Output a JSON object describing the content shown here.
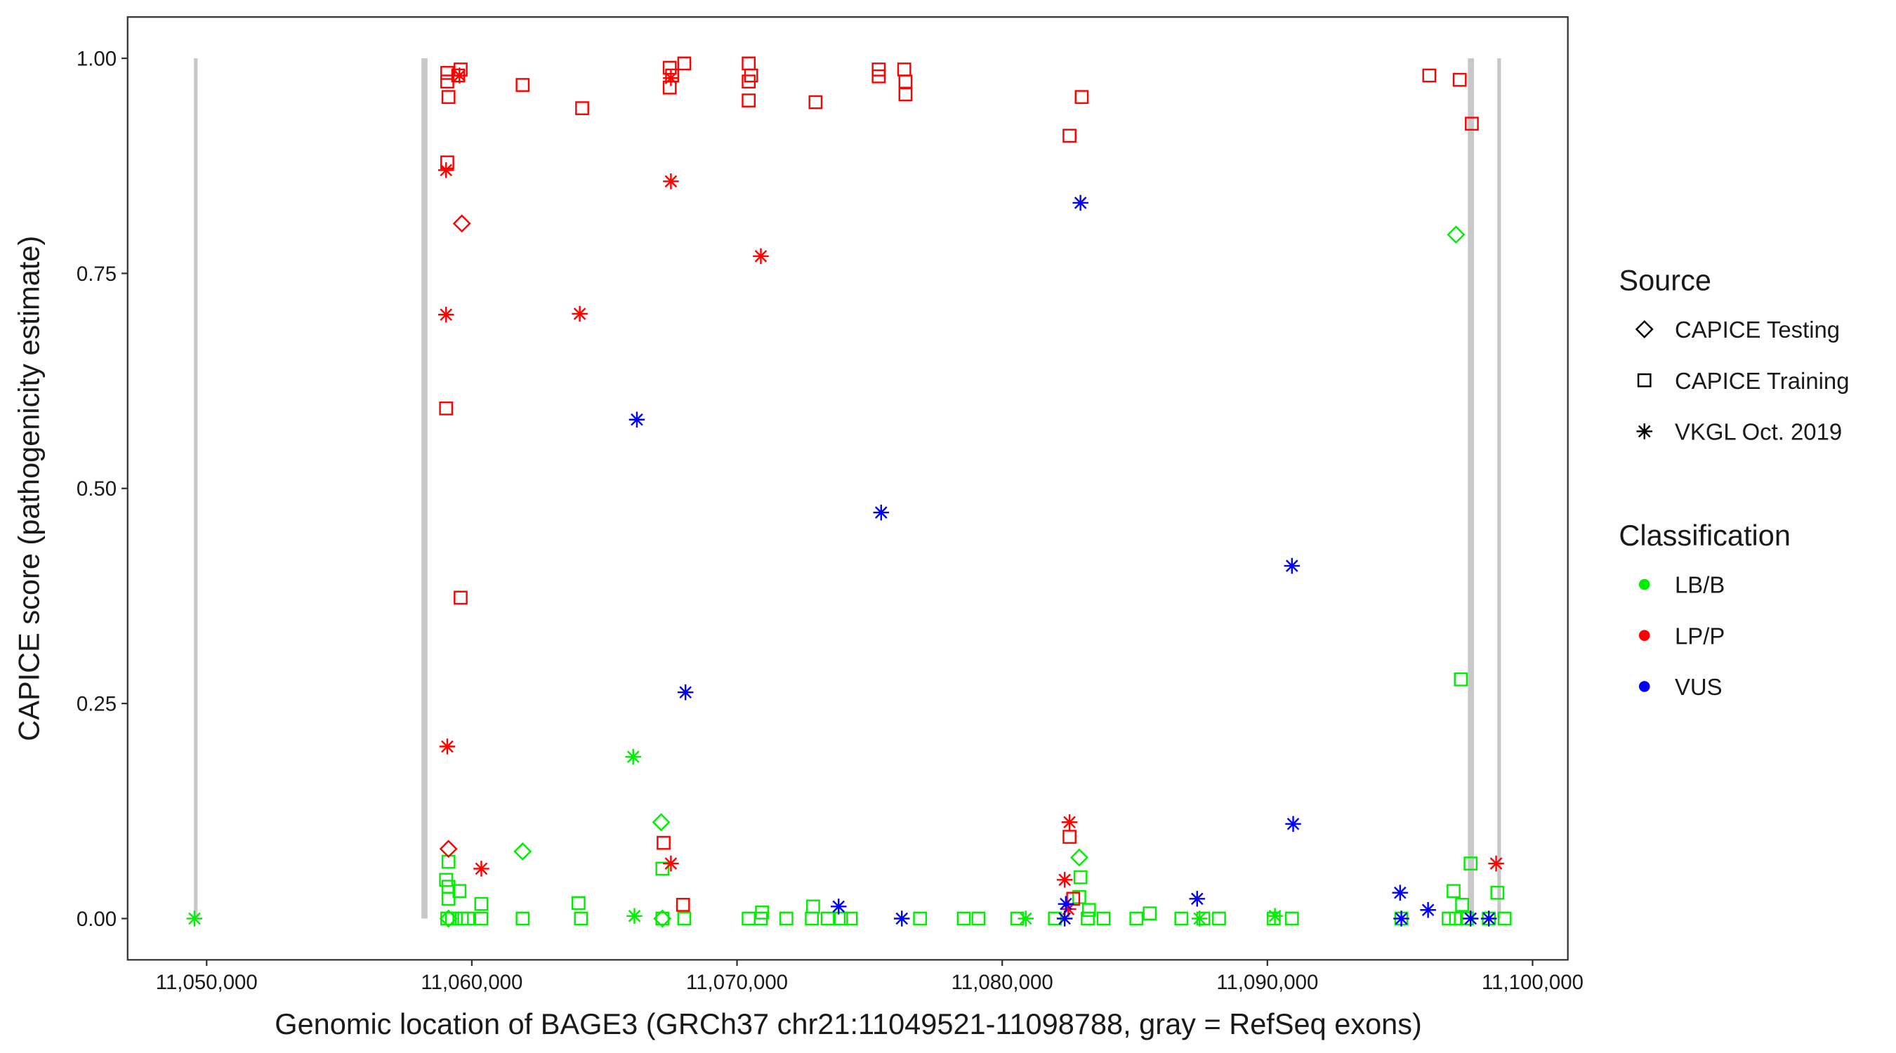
{
  "chart_data": {
    "type": "scatter",
    "x_label": "Genomic location of BAGE3 (GRCh37 chr21:11049521-11098788, gray = RefSeq exons)",
    "y_label": "CAPICE score (pathogenicity estimate)",
    "xlim": [
      11047020,
      11101330
    ],
    "ylim": [
      -0.048,
      1.048
    ],
    "xticks": [
      {
        "value": 11050000,
        "label": "11,050,000"
      },
      {
        "value": 11060000,
        "label": "11,060,000"
      },
      {
        "value": 11070000,
        "label": "11,070,000"
      },
      {
        "value": 11080000,
        "label": "11,080,000"
      },
      {
        "value": 11090000,
        "label": "11,090,000"
      },
      {
        "value": 11100000,
        "label": "11,100,000"
      }
    ],
    "yticks": [
      {
        "value": 0,
        "label": "0.00"
      },
      {
        "value": 0.25,
        "label": "0.25"
      },
      {
        "value": 0.5,
        "label": "0.50"
      },
      {
        "value": 0.75,
        "label": "0.75"
      },
      {
        "value": 1,
        "label": "1.00"
      }
    ],
    "grid": false,
    "exon_color": "#c8c8c8",
    "exons": [
      {
        "start": 11049521,
        "end": 11049640
      },
      {
        "start": 11058100,
        "end": 11058330
      },
      {
        "start": 11097560,
        "end": 11097790
      },
      {
        "start": 11098670,
        "end": 11098788
      }
    ],
    "legend": {
      "position": "right",
      "source": {
        "title": "Source",
        "items": [
          {
            "label": "CAPICE Testing",
            "shape": "diamond"
          },
          {
            "label": "CAPICE Training",
            "shape": "square"
          },
          {
            "label": "VKGL Oct. 2019",
            "shape": "asterisk"
          }
        ]
      },
      "classification": {
        "title": "Classification",
        "items": [
          {
            "label": "LB/B",
            "color": "#00ee00"
          },
          {
            "label": "LP/P",
            "color": "#ff0000"
          },
          {
            "label": "VUS",
            "color": "#0000ff"
          }
        ]
      }
    },
    "series": [
      {
        "source": 1,
        "classification": 0,
        "x": [
          11097297,
          11097663,
          11059120,
          11067186,
          11059029,
          11059120,
          11059533,
          11059120,
          11060358,
          11064024,
          11097021,
          11097343,
          11098672,
          11082952,
          11082906,
          11072869,
          11070944,
          11083273,
          11085564,
          11059074,
          11059258,
          11059624,
          11059853,
          11060358,
          11061916,
          11064116,
          11067186,
          11068011,
          11070440,
          11070898,
          11071861,
          11072823,
          11073419,
          11073923,
          11074290,
          11076902,
          11078552,
          11079102,
          11080568,
          11081989,
          11083227,
          11083823,
          11085060,
          11086756,
          11087581,
          11088176,
          11090239,
          11090926,
          11095051,
          11096838,
          11097113,
          11097526,
          11098351,
          11098946
        ],
        "y": [
          0.278,
          0.064,
          0.066,
          0.058,
          0.045,
          0.037,
          0.032,
          0.023,
          0.017,
          0.018,
          0.032,
          0.016,
          0.03,
          0.048,
          0.025,
          0.014,
          0.007,
          0.01,
          0.006,
          0,
          0,
          0,
          0,
          0,
          0,
          0,
          0,
          0,
          0,
          0,
          0,
          0,
          0,
          0,
          0,
          0,
          0,
          0,
          0,
          0,
          0,
          0,
          0,
          0,
          0,
          0,
          0,
          0,
          0,
          0,
          0,
          0,
          0,
          0
        ]
      },
      {
        "source": 0,
        "classification": 0,
        "x": [
          11067140,
          11061916,
          11082906,
          11097113,
          11059120,
          11067186
        ],
        "y": [
          0.112,
          0.078,
          0.071,
          0.795,
          0,
          0
        ]
      },
      {
        "source": 2,
        "classification": 0,
        "x": [
          11049542,
          11066086,
          11066132,
          11080889,
          11090285,
          11087443
        ],
        "y": [
          0,
          0.188,
          0.003,
          0,
          0.003,
          0
        ]
      },
      {
        "source": 1,
        "classification": 1,
        "x": [
          11059074,
          11059074,
          11059120,
          11059487,
          11059578,
          11059074,
          11059029,
          11059578,
          11061916,
          11064161,
          11067461,
          11067461,
          11067553,
          11068011,
          11070440,
          11070440,
          11070532,
          11070440,
          11072960,
          11075343,
          11075343,
          11076306,
          11076352,
          11076352,
          11082539,
          11082998,
          11096105,
          11097251,
          11097709,
          11067232,
          11082539,
          11067965,
          11082677
        ],
        "y": [
          0.983,
          0.973,
          0.955,
          0.98,
          0.987,
          0.879,
          0.593,
          0.373,
          0.969,
          0.942,
          0.989,
          0.966,
          0.98,
          0.994,
          0.994,
          0.973,
          0.98,
          0.951,
          0.949,
          0.987,
          0.979,
          0.987,
          0.973,
          0.958,
          0.91,
          0.955,
          0.98,
          0.975,
          0.924,
          0.088,
          0.095,
          0.016,
          0.023
        ]
      },
      {
        "source": 2,
        "classification": 1,
        "x": [
          11059029,
          11059029,
          11059074,
          11060358,
          11059533,
          11067507,
          11070898,
          11064070,
          11067507,
          11067507,
          11082539,
          11082356,
          11082494,
          11098626
        ],
        "y": [
          0.87,
          0.702,
          0.2,
          0.058,
          0.98,
          0.857,
          0.77,
          0.703,
          0.977,
          0.064,
          0.112,
          0.045,
          0.011,
          0.064
        ]
      },
      {
        "source": 0,
        "classification": 1,
        "x": [
          11059624,
          11059120
        ],
        "y": [
          0.808,
          0.081
        ]
      },
      {
        "source": 2,
        "classification": 2,
        "x": [
          11066224,
          11075435,
          11068057,
          11082952,
          11090926,
          11090972,
          11073832,
          11076215,
          11082402,
          11082356,
          11087351,
          11095005,
          11095051,
          11096059,
          11097663,
          11098351
        ],
        "y": [
          0.58,
          0.472,
          0.263,
          0.832,
          0.41,
          0.11,
          0.014,
          0,
          0.017,
          0,
          0.023,
          0.03,
          0,
          0.01,
          0,
          0
        ]
      }
    ]
  }
}
